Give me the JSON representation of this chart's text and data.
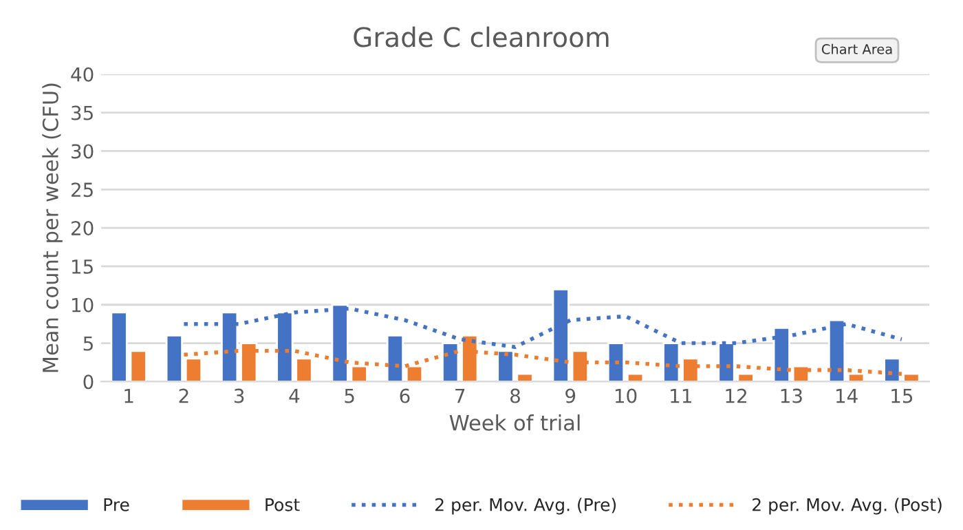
{
  "chart_data": {
    "type": "bar",
    "title": "Grade C cleanroom",
    "xlabel": "Week of trial",
    "ylabel": "Mean count per week (CFU)",
    "categories": [
      "1",
      "2",
      "3",
      "4",
      "5",
      "6",
      "7",
      "8",
      "9",
      "10",
      "11",
      "12",
      "13",
      "14",
      "15"
    ],
    "series": [
      {
        "name": "Pre",
        "color": "#4472c4",
        "values": [
          9,
          6,
          9,
          9,
          10,
          6,
          5,
          4,
          12,
          5,
          5,
          5,
          7,
          8,
          3
        ]
      },
      {
        "name": "Post",
        "color": "#ed7d31",
        "values": [
          4,
          3,
          5,
          3,
          2,
          2,
          6,
          1,
          4,
          1,
          3,
          1,
          2,
          1,
          1
        ]
      },
      {
        "name": "2 per. Mov. Avg. (Pre)",
        "type": "line",
        "line_style": "dotted",
        "color": "#4472c4",
        "values": [
          null,
          7.5,
          7.5,
          9,
          9.5,
          8,
          5.5,
          4.5,
          8,
          8.5,
          5,
          5,
          6,
          7.5,
          5.5
        ]
      },
      {
        "name": "2 per. Mov. Avg. (Post)",
        "type": "line",
        "line_style": "dotted",
        "color": "#ed7d31",
        "values": [
          null,
          3.5,
          4,
          4,
          2.5,
          2,
          4,
          3.5,
          2.5,
          2.5,
          2,
          2,
          1.5,
          1.5,
          1
        ]
      }
    ],
    "ylim": [
      0,
      40
    ],
    "yticks": [
      0,
      5,
      10,
      15,
      20,
      25,
      30,
      35,
      40
    ],
    "grid": "y",
    "legend": "bottom",
    "annotations": [
      "Chart Area"
    ]
  }
}
